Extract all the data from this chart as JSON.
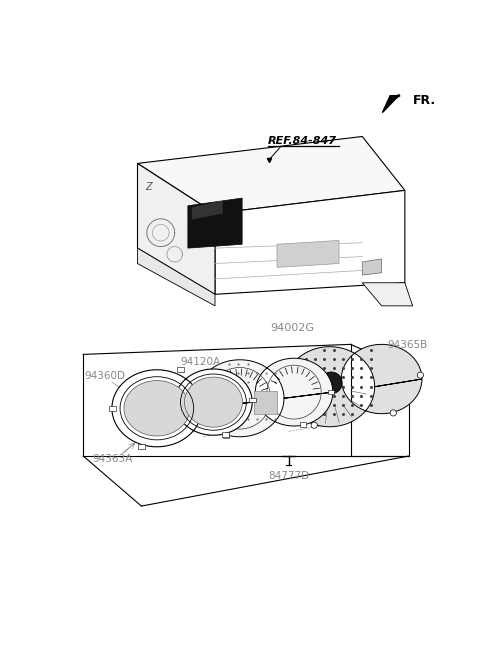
{
  "bg_color": "#ffffff",
  "fr_label": "FR.",
  "ref_label": "REF.84-847",
  "label_94002G": "94002G",
  "label_94365B": "94365B",
  "label_94120A": "94120A",
  "label_94360D": "94360D",
  "label_94363A": "94363A",
  "label_84777D": "84777D",
  "line_color": "#000000",
  "text_color": "#000000",
  "grey_text_color": "#888888"
}
